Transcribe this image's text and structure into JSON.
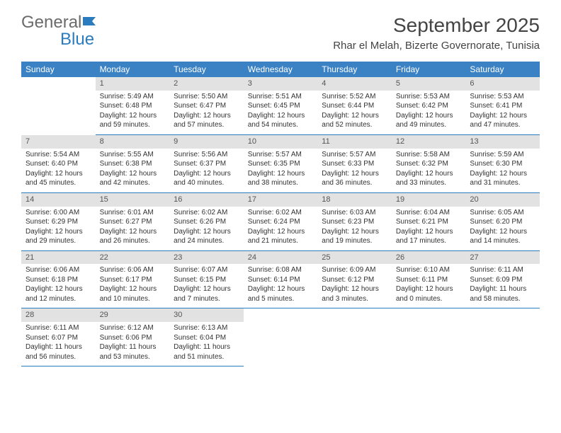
{
  "logo": {
    "text_general": "General",
    "text_blue": "Blue"
  },
  "header": {
    "month_title": "September 2025",
    "location": "Rhar el Melah, Bizerte Governorate, Tunisia"
  },
  "colors": {
    "header_bar": "#3b82c4",
    "daynum_bg": "#e2e2e2",
    "cell_border": "#2b7bbf",
    "logo_blue": "#2b7bbf",
    "logo_gray": "#6b6b6b",
    "text": "#333333",
    "background": "#ffffff"
  },
  "weekdays": [
    "Sunday",
    "Monday",
    "Tuesday",
    "Wednesday",
    "Thursday",
    "Friday",
    "Saturday"
  ],
  "weeks": [
    [
      {
        "day": "",
        "empty": true
      },
      {
        "day": "1",
        "sunrise": "Sunrise: 5:49 AM",
        "sunset": "Sunset: 6:48 PM",
        "daylight": "Daylight: 12 hours and 59 minutes."
      },
      {
        "day": "2",
        "sunrise": "Sunrise: 5:50 AM",
        "sunset": "Sunset: 6:47 PM",
        "daylight": "Daylight: 12 hours and 57 minutes."
      },
      {
        "day": "3",
        "sunrise": "Sunrise: 5:51 AM",
        "sunset": "Sunset: 6:45 PM",
        "daylight": "Daylight: 12 hours and 54 minutes."
      },
      {
        "day": "4",
        "sunrise": "Sunrise: 5:52 AM",
        "sunset": "Sunset: 6:44 PM",
        "daylight": "Daylight: 12 hours and 52 minutes."
      },
      {
        "day": "5",
        "sunrise": "Sunrise: 5:53 AM",
        "sunset": "Sunset: 6:42 PM",
        "daylight": "Daylight: 12 hours and 49 minutes."
      },
      {
        "day": "6",
        "sunrise": "Sunrise: 5:53 AM",
        "sunset": "Sunset: 6:41 PM",
        "daylight": "Daylight: 12 hours and 47 minutes."
      }
    ],
    [
      {
        "day": "7",
        "sunrise": "Sunrise: 5:54 AM",
        "sunset": "Sunset: 6:40 PM",
        "daylight": "Daylight: 12 hours and 45 minutes."
      },
      {
        "day": "8",
        "sunrise": "Sunrise: 5:55 AM",
        "sunset": "Sunset: 6:38 PM",
        "daylight": "Daylight: 12 hours and 42 minutes."
      },
      {
        "day": "9",
        "sunrise": "Sunrise: 5:56 AM",
        "sunset": "Sunset: 6:37 PM",
        "daylight": "Daylight: 12 hours and 40 minutes."
      },
      {
        "day": "10",
        "sunrise": "Sunrise: 5:57 AM",
        "sunset": "Sunset: 6:35 PM",
        "daylight": "Daylight: 12 hours and 38 minutes."
      },
      {
        "day": "11",
        "sunrise": "Sunrise: 5:57 AM",
        "sunset": "Sunset: 6:33 PM",
        "daylight": "Daylight: 12 hours and 36 minutes."
      },
      {
        "day": "12",
        "sunrise": "Sunrise: 5:58 AM",
        "sunset": "Sunset: 6:32 PM",
        "daylight": "Daylight: 12 hours and 33 minutes."
      },
      {
        "day": "13",
        "sunrise": "Sunrise: 5:59 AM",
        "sunset": "Sunset: 6:30 PM",
        "daylight": "Daylight: 12 hours and 31 minutes."
      }
    ],
    [
      {
        "day": "14",
        "sunrise": "Sunrise: 6:00 AM",
        "sunset": "Sunset: 6:29 PM",
        "daylight": "Daylight: 12 hours and 29 minutes."
      },
      {
        "day": "15",
        "sunrise": "Sunrise: 6:01 AM",
        "sunset": "Sunset: 6:27 PM",
        "daylight": "Daylight: 12 hours and 26 minutes."
      },
      {
        "day": "16",
        "sunrise": "Sunrise: 6:02 AM",
        "sunset": "Sunset: 6:26 PM",
        "daylight": "Daylight: 12 hours and 24 minutes."
      },
      {
        "day": "17",
        "sunrise": "Sunrise: 6:02 AM",
        "sunset": "Sunset: 6:24 PM",
        "daylight": "Daylight: 12 hours and 21 minutes."
      },
      {
        "day": "18",
        "sunrise": "Sunrise: 6:03 AM",
        "sunset": "Sunset: 6:23 PM",
        "daylight": "Daylight: 12 hours and 19 minutes."
      },
      {
        "day": "19",
        "sunrise": "Sunrise: 6:04 AM",
        "sunset": "Sunset: 6:21 PM",
        "daylight": "Daylight: 12 hours and 17 minutes."
      },
      {
        "day": "20",
        "sunrise": "Sunrise: 6:05 AM",
        "sunset": "Sunset: 6:20 PM",
        "daylight": "Daylight: 12 hours and 14 minutes."
      }
    ],
    [
      {
        "day": "21",
        "sunrise": "Sunrise: 6:06 AM",
        "sunset": "Sunset: 6:18 PM",
        "daylight": "Daylight: 12 hours and 12 minutes."
      },
      {
        "day": "22",
        "sunrise": "Sunrise: 6:06 AM",
        "sunset": "Sunset: 6:17 PM",
        "daylight": "Daylight: 12 hours and 10 minutes."
      },
      {
        "day": "23",
        "sunrise": "Sunrise: 6:07 AM",
        "sunset": "Sunset: 6:15 PM",
        "daylight": "Daylight: 12 hours and 7 minutes."
      },
      {
        "day": "24",
        "sunrise": "Sunrise: 6:08 AM",
        "sunset": "Sunset: 6:14 PM",
        "daylight": "Daylight: 12 hours and 5 minutes."
      },
      {
        "day": "25",
        "sunrise": "Sunrise: 6:09 AM",
        "sunset": "Sunset: 6:12 PM",
        "daylight": "Daylight: 12 hours and 3 minutes."
      },
      {
        "day": "26",
        "sunrise": "Sunrise: 6:10 AM",
        "sunset": "Sunset: 6:11 PM",
        "daylight": "Daylight: 12 hours and 0 minutes."
      },
      {
        "day": "27",
        "sunrise": "Sunrise: 6:11 AM",
        "sunset": "Sunset: 6:09 PM",
        "daylight": "Daylight: 11 hours and 58 minutes."
      }
    ],
    [
      {
        "day": "28",
        "sunrise": "Sunrise: 6:11 AM",
        "sunset": "Sunset: 6:07 PM",
        "daylight": "Daylight: 11 hours and 56 minutes."
      },
      {
        "day": "29",
        "sunrise": "Sunrise: 6:12 AM",
        "sunset": "Sunset: 6:06 PM",
        "daylight": "Daylight: 11 hours and 53 minutes."
      },
      {
        "day": "30",
        "sunrise": "Sunrise: 6:13 AM",
        "sunset": "Sunset: 6:04 PM",
        "daylight": "Daylight: 11 hours and 51 minutes."
      },
      {
        "day": "",
        "empty": true
      },
      {
        "day": "",
        "empty": true
      },
      {
        "day": "",
        "empty": true
      },
      {
        "day": "",
        "empty": true
      }
    ]
  ]
}
